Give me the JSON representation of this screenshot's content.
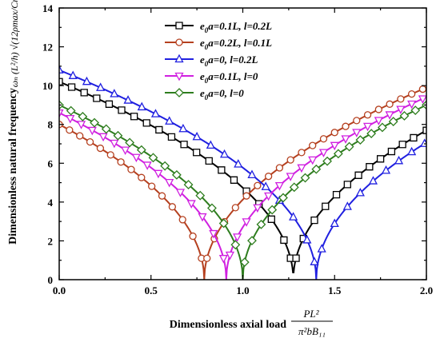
{
  "chart_data": {
    "type": "line",
    "xlabel": "Dimensionless axial load",
    "xlabel_formula": {
      "numerator": "PL²",
      "denominator": "π²bB₁₁"
    },
    "ylabel": "Dimensionless natural frequency",
    "ylabel_formula": "ωₙ (L²/h) √(12ρmax/Cmax)",
    "xlim": [
      0.0,
      2.0
    ],
    "ylim": [
      0,
      14
    ],
    "xticks": [
      0.0,
      0.5,
      1.0,
      1.5,
      2.0
    ],
    "yticks": [
      0,
      2,
      4,
      6,
      8,
      10,
      12,
      14
    ],
    "grid": false,
    "legend_position": "top-center",
    "series": [
      {
        "name": "e0a=0.1L, l=0.2L",
        "color": "#000000",
        "marker": "square",
        "legend": {
          "prefix": "e",
          "sub": "0",
          "mid": "a=0.1L, ",
          "l_part": "l=0.2L"
        },
        "omega0": 10.2,
        "pcr": 1.275,
        "points_x": [
          0.0,
          0.068,
          0.136,
          0.204,
          0.272,
          0.34,
          0.408,
          0.476,
          0.544,
          0.612,
          0.68,
          0.748,
          0.816,
          0.884,
          0.952,
          1.02,
          1.088,
          1.156,
          1.224,
          1.26,
          1.29,
          1.33,
          1.39,
          1.45,
          1.51,
          1.57,
          1.63,
          1.69,
          1.75,
          1.81,
          1.87,
          1.93,
          2.0
        ]
      },
      {
        "name": "e0a=0.2L, l=0.1L",
        "color": "#b5401f",
        "marker": "circle",
        "legend": {
          "prefix": "e",
          "sub": "0",
          "mid": "a=0.2L,  ",
          "l_part": "l=0.1L"
        },
        "omega0": 8.0,
        "pcr": 0.79,
        "points_x": [
          0.0,
          0.056,
          0.112,
          0.168,
          0.224,
          0.28,
          0.336,
          0.392,
          0.448,
          0.504,
          0.56,
          0.616,
          0.672,
          0.728,
          0.775,
          0.805,
          0.845,
          0.9,
          0.96,
          1.02,
          1.08,
          1.14,
          1.2,
          1.26,
          1.32,
          1.38,
          1.44,
          1.5,
          1.56,
          1.62,
          1.68,
          1.74,
          1.8,
          1.86,
          1.92,
          1.98
        ]
      },
      {
        "name": "e0a=0, l=0.2L",
        "color": "#1f1fe0",
        "marker": "triangle-up",
        "legend": {
          "prefix": "e",
          "sub": "0",
          "mid": "a=0,     ",
          "l_part": "l=0.2L"
        },
        "omega0": 10.8,
        "pcr": 1.4,
        "points_x": [
          0.0,
          0.075,
          0.15,
          0.225,
          0.3,
          0.375,
          0.45,
          0.525,
          0.6,
          0.675,
          0.75,
          0.825,
          0.9,
          0.975,
          1.05,
          1.125,
          1.2,
          1.275,
          1.35,
          1.39,
          1.43,
          1.5,
          1.57,
          1.64,
          1.71,
          1.78,
          1.85,
          1.92,
          1.99
        ]
      },
      {
        "name": "e0a=0.1L, l=0",
        "color": "#d020e0",
        "marker": "triangle-down",
        "legend": {
          "prefix": "e",
          "sub": "0",
          "mid": "a=0.1L, ",
          "l_part": "l=0"
        },
        "omega0": 8.6,
        "pcr": 0.91,
        "points_x": [
          0.0,
          0.06,
          0.12,
          0.18,
          0.24,
          0.3,
          0.36,
          0.42,
          0.48,
          0.54,
          0.6,
          0.66,
          0.72,
          0.78,
          0.84,
          0.895,
          0.93,
          0.97,
          1.02,
          1.08,
          1.14,
          1.2,
          1.26,
          1.32,
          1.38,
          1.44,
          1.5,
          1.56,
          1.62,
          1.68,
          1.74,
          1.8,
          1.86,
          1.92,
          1.98
        ]
      },
      {
        "name": "e0a=0, l=0",
        "color": "#2e7d1e",
        "marker": "diamond",
        "legend": {
          "prefix": "e",
          "sub": "0",
          "mid": "a=0,     ",
          "l_part": "l=0"
        },
        "omega0": 9.0,
        "pcr": 1.0,
        "points_x": [
          0.0,
          0.064,
          0.128,
          0.192,
          0.256,
          0.32,
          0.384,
          0.448,
          0.512,
          0.576,
          0.64,
          0.704,
          0.768,
          0.832,
          0.896,
          0.96,
          1.01,
          1.05,
          1.1,
          1.16,
          1.22,
          1.28,
          1.34,
          1.4,
          1.46,
          1.52,
          1.58,
          1.64,
          1.7,
          1.76,
          1.82,
          1.88,
          1.94,
          2.0
        ]
      }
    ]
  }
}
